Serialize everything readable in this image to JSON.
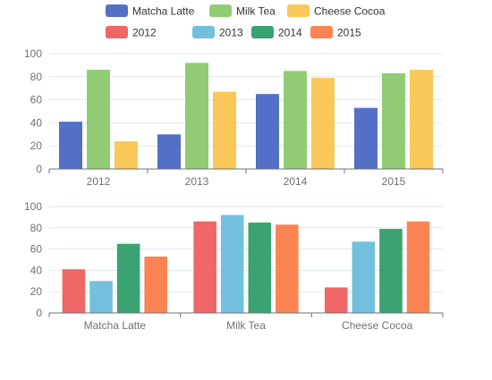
{
  "chart_data": [
    {
      "type": "bar",
      "categories": [
        "2012",
        "2013",
        "2014",
        "2015"
      ],
      "series": [
        {
          "name": "Matcha Latte",
          "values": [
            41,
            30,
            65,
            53
          ],
          "color": "#5470c6"
        },
        {
          "name": "Milk Tea",
          "values": [
            86,
            92,
            85,
            83
          ],
          "color": "#91cc75"
        },
        {
          "name": "Cheese Cocoa",
          "values": [
            24,
            67,
            79,
            86
          ],
          "color": "#fac858"
        }
      ],
      "ylim": [
        0,
        100
      ],
      "yticks": [
        "0",
        "20",
        "40",
        "60",
        "80",
        "100"
      ],
      "grid": true,
      "legend": "top"
    },
    {
      "type": "bar",
      "categories": [
        "Matcha Latte",
        "Milk Tea",
        "Cheese Cocoa"
      ],
      "series": [
        {
          "name": "2012",
          "values": [
            41,
            86,
            24
          ],
          "color": "#ee6666"
        },
        {
          "name": "2013",
          "values": [
            30,
            92,
            67
          ],
          "color": "#73c0de"
        },
        {
          "name": "2014",
          "values": [
            65,
            85,
            79
          ],
          "color": "#3ba272"
        },
        {
          "name": "2015",
          "values": [
            53,
            83,
            86
          ],
          "color": "#fc8452"
        }
      ],
      "ylim": [
        0,
        100
      ],
      "yticks": [
        "0",
        "20",
        "40",
        "60",
        "80",
        "100"
      ],
      "grid": true,
      "legend": "top"
    }
  ]
}
